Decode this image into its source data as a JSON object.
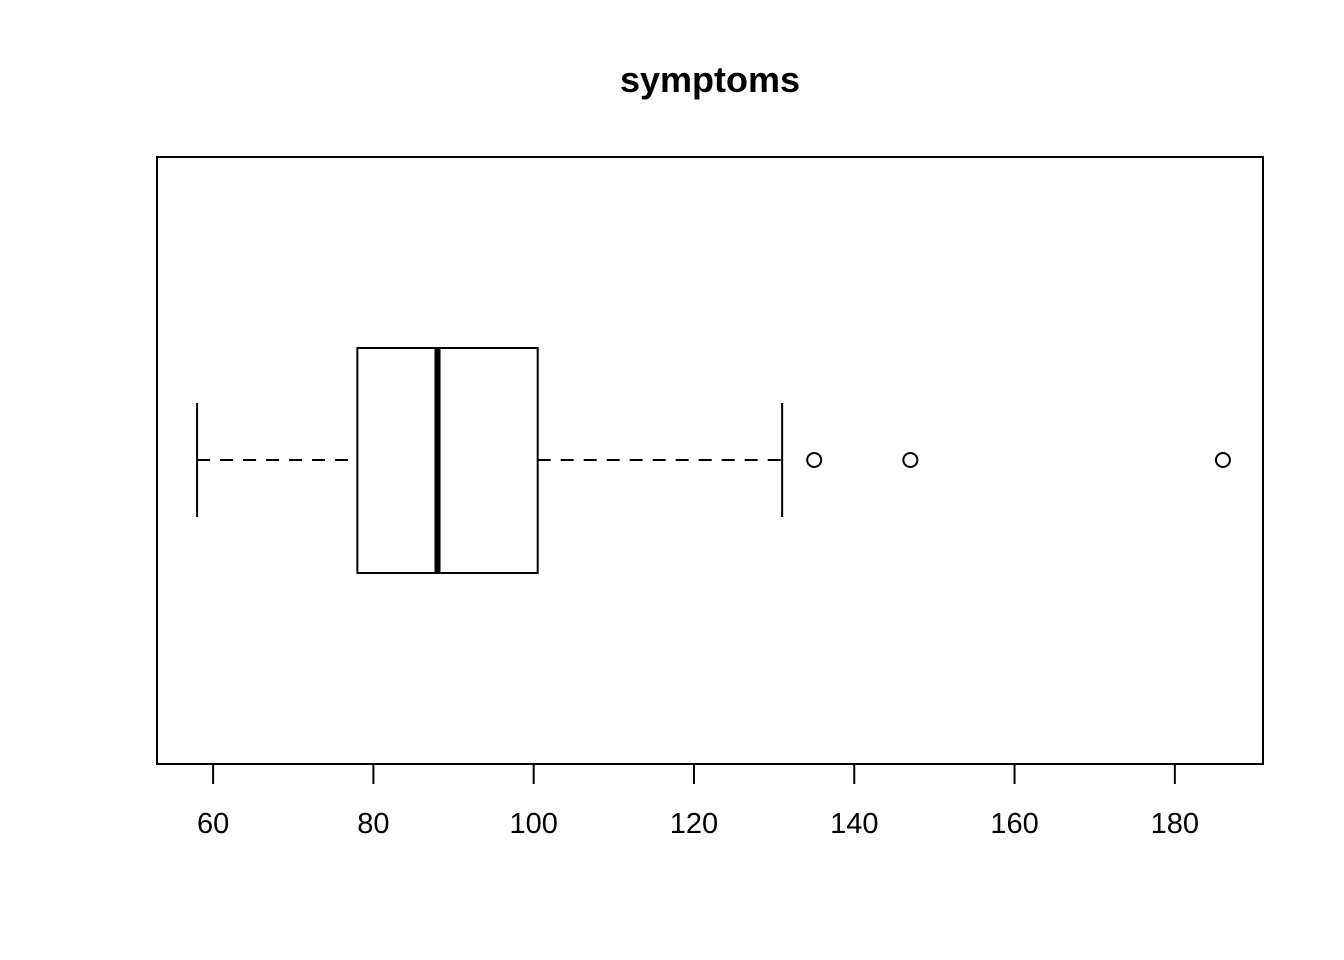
{
  "chart_data": {
    "type": "boxplot",
    "orientation": "horizontal",
    "title": "symptoms",
    "xlabel": "",
    "ylabel": "",
    "xlim": [
      53,
      191
    ],
    "ticks": [
      60,
      80,
      100,
      120,
      140,
      160,
      180
    ],
    "tick_labels": [
      "60",
      "80",
      "100",
      "120",
      "140",
      "160",
      "180"
    ],
    "stats": {
      "whisker_low": 58,
      "q1": 78,
      "median": 88,
      "q3": 100.5,
      "whisker_high": 131
    },
    "outliers": [
      135,
      147,
      186
    ],
    "grid": false,
    "legend": false
  }
}
